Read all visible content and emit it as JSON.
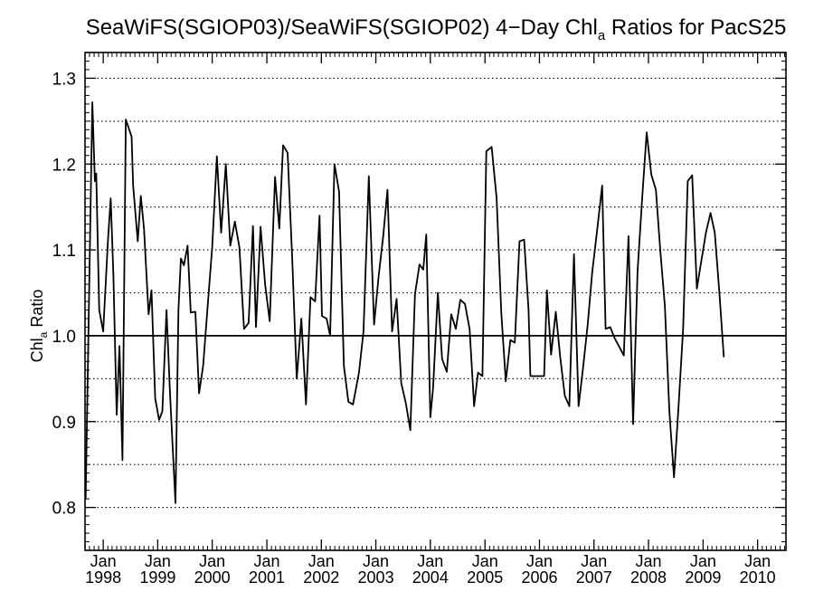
{
  "chart_data": {
    "type": "line",
    "title": "SeaWiFS(SGIOP03)/SeaWiFS(SGIOP02) 4−Day Chl",
    "title_sub": "a",
    "title_tail": " Ratios for PacS25",
    "ylabel": "Chl",
    "ylabel_sub": "a",
    "ylabel_tail": " Ratio",
    "ylim": [
      0.75,
      1.33
    ],
    "xlim": [
      "1997-09-01",
      "2010-07-10"
    ],
    "y_ticks": [
      "0.8",
      "0.9",
      "1.0",
      "1.1",
      "1.2",
      "1.3"
    ],
    "y_gridlines": [
      0.75,
      0.8,
      0.85,
      0.9,
      0.95,
      1.05,
      1.1,
      1.15,
      1.2,
      1.25,
      1.3
    ],
    "reference_line": 1.0,
    "grid": true,
    "x_ticks": [
      {
        "month": "Jan",
        "year": "1998",
        "date": "1998-01-01"
      },
      {
        "month": "Jan",
        "year": "1999",
        "date": "1999-01-01"
      },
      {
        "month": "Jan",
        "year": "2000",
        "date": "2000-01-01"
      },
      {
        "month": "Jan",
        "year": "2001",
        "date": "2001-01-01"
      },
      {
        "month": "Jan",
        "year": "2002",
        "date": "2002-01-01"
      },
      {
        "month": "Jan",
        "year": "2003",
        "date": "2003-01-01"
      },
      {
        "month": "Jan",
        "year": "2004",
        "date": "2004-01-01"
      },
      {
        "month": "Jan",
        "year": "2005",
        "date": "2005-01-01"
      },
      {
        "month": "Jan",
        "year": "2006",
        "date": "2006-01-01"
      },
      {
        "month": "Jan",
        "year": "2007",
        "date": "2007-01-01"
      },
      {
        "month": "Jan",
        "year": "2008",
        "date": "2008-01-01"
      },
      {
        "month": "Jan",
        "year": "2009",
        "date": "2009-01-01"
      },
      {
        "month": "Jan",
        "year": "2010",
        "date": "2010-01-01"
      }
    ],
    "series": [
      {
        "color": "#000000",
        "points": [
          [
            "1997-09-05",
            0.81
          ],
          [
            "1997-10-20",
            1.272
          ],
          [
            "1997-11-06",
            1.18
          ],
          [
            "1997-11-15",
            1.189
          ],
          [
            "1997-12-05",
            1.03
          ],
          [
            "1998-01-01",
            1.005
          ],
          [
            "1998-02-01",
            1.11
          ],
          [
            "1998-02-20",
            1.16
          ],
          [
            "1998-03-10",
            1.07
          ],
          [
            "1998-04-01",
            0.908
          ],
          [
            "1998-04-20",
            0.988
          ],
          [
            "1998-05-10",
            0.855
          ],
          [
            "1998-06-01",
            1.252
          ],
          [
            "1998-07-10",
            1.232
          ],
          [
            "1998-07-20",
            1.175
          ],
          [
            "1998-08-20",
            1.11
          ],
          [
            "1998-09-10",
            1.163
          ],
          [
            "1998-10-01",
            1.125
          ],
          [
            "1998-11-01",
            1.025
          ],
          [
            "1998-11-20",
            1.053
          ],
          [
            "1998-12-15",
            0.927
          ],
          [
            "1999-01-10",
            0.902
          ],
          [
            "1999-02-01",
            0.912
          ],
          [
            "1999-03-01",
            1.03
          ],
          [
            "1999-03-25",
            0.93
          ],
          [
            "1999-04-30",
            0.805
          ],
          [
            "1999-05-20",
            1.03
          ],
          [
            "1999-06-05",
            1.09
          ],
          [
            "1999-06-25",
            1.082
          ],
          [
            "1999-07-20",
            1.105
          ],
          [
            "1999-08-10",
            1.027
          ],
          [
            "1999-09-10",
            1.028
          ],
          [
            "1999-10-05",
            0.933
          ],
          [
            "1999-11-01",
            0.965
          ],
          [
            "1999-12-01",
            1.033
          ],
          [
            "2000-01-01",
            1.103
          ],
          [
            "2000-02-01",
            1.209
          ],
          [
            "2000-03-01",
            1.12
          ],
          [
            "2000-04-01",
            1.2
          ],
          [
            "2000-05-01",
            1.105
          ],
          [
            "2000-06-01",
            1.133
          ],
          [
            "2000-07-01",
            1.103
          ],
          [
            "2000-08-01",
            1.008
          ],
          [
            "2000-09-01",
            1.015
          ],
          [
            "2000-09-30",
            1.128
          ],
          [
            "2000-10-20",
            1.01
          ],
          [
            "2000-11-20",
            1.127
          ],
          [
            "2000-12-20",
            1.06
          ],
          [
            "2001-01-20",
            1.017
          ],
          [
            "2001-02-25",
            1.185
          ],
          [
            "2001-03-25",
            1.125
          ],
          [
            "2001-04-20",
            1.222
          ],
          [
            "2001-05-20",
            1.213
          ],
          [
            "2001-06-20",
            1.09
          ],
          [
            "2001-07-20",
            0.95
          ],
          [
            "2001-08-20",
            1.02
          ],
          [
            "2001-09-20",
            0.92
          ],
          [
            "2001-10-20",
            1.045
          ],
          [
            "2001-11-20",
            1.04
          ],
          [
            "2001-12-20",
            1.14
          ],
          [
            "2002-01-05",
            1.023
          ],
          [
            "2002-02-05",
            1.02
          ],
          [
            "2002-03-01",
            1.0
          ],
          [
            "2002-03-30",
            1.2
          ],
          [
            "2002-04-30",
            1.168
          ],
          [
            "2002-06-01",
            0.965
          ],
          [
            "2002-07-01",
            0.923
          ],
          [
            "2002-08-01",
            0.92
          ],
          [
            "2002-09-10",
            0.957
          ],
          [
            "2002-10-10",
            1.005
          ],
          [
            "2002-11-15",
            1.186
          ],
          [
            "2002-12-20",
            1.013
          ],
          [
            "2003-01-20",
            1.07
          ],
          [
            "2003-02-20",
            1.117
          ],
          [
            "2003-03-20",
            1.17
          ],
          [
            "2003-04-20",
            1.005
          ],
          [
            "2003-05-20",
            1.043
          ],
          [
            "2003-06-20",
            0.945
          ],
          [
            "2003-07-20",
            0.922
          ],
          [
            "2003-08-20",
            0.89
          ],
          [
            "2003-09-20",
            1.048
          ],
          [
            "2003-10-20",
            1.083
          ],
          [
            "2003-11-15",
            1.077
          ],
          [
            "2003-12-05",
            1.118
          ],
          [
            "2004-01-01",
            0.905
          ],
          [
            "2004-01-20",
            0.94
          ],
          [
            "2004-02-20",
            1.05
          ],
          [
            "2004-03-20",
            0.973
          ],
          [
            "2004-04-20",
            0.958
          ],
          [
            "2004-05-20",
            1.025
          ],
          [
            "2004-06-20",
            1.008
          ],
          [
            "2004-07-20",
            1.042
          ],
          [
            "2004-08-20",
            1.037
          ],
          [
            "2004-09-20",
            1.008
          ],
          [
            "2004-10-20",
            0.918
          ],
          [
            "2004-11-15",
            0.957
          ],
          [
            "2004-12-15",
            0.953
          ],
          [
            "2005-01-10",
            1.215
          ],
          [
            "2005-02-15",
            1.22
          ],
          [
            "2005-03-20",
            1.16
          ],
          [
            "2005-04-20",
            1.028
          ],
          [
            "2005-05-20",
            0.947
          ],
          [
            "2005-06-20",
            0.995
          ],
          [
            "2005-07-20",
            0.992
          ],
          [
            "2005-08-20",
            1.11
          ],
          [
            "2005-09-20",
            1.112
          ],
          [
            "2005-10-20",
            1.03
          ],
          [
            "2005-11-01",
            0.953
          ],
          [
            "2005-12-01",
            0.953
          ],
          [
            "2006-01-01",
            0.953
          ],
          [
            "2006-02-01",
            0.953
          ],
          [
            "2006-02-20",
            1.053
          ],
          [
            "2006-03-20",
            0.978
          ],
          [
            "2006-04-20",
            1.028
          ],
          [
            "2006-05-20",
            0.975
          ],
          [
            "2006-06-20",
            0.93
          ],
          [
            "2006-07-20",
            0.918
          ],
          [
            "2006-08-20",
            1.095
          ],
          [
            "2006-09-20",
            0.918
          ],
          [
            "2006-10-20",
            0.963
          ],
          [
            "2006-11-20",
            1.013
          ],
          [
            "2006-12-20",
            1.073
          ],
          [
            "2007-01-20",
            1.12
          ],
          [
            "2007-02-25",
            1.175
          ],
          [
            "2007-03-20",
            1.008
          ],
          [
            "2007-04-20",
            1.01
          ],
          [
            "2007-05-20",
            0.997
          ],
          [
            "2007-06-20",
            0.987
          ],
          [
            "2007-07-20",
            0.977
          ],
          [
            "2007-08-20",
            1.116
          ],
          [
            "2007-09-20",
            0.897
          ],
          [
            "2007-10-20",
            1.075
          ],
          [
            "2007-11-20",
            1.16
          ],
          [
            "2007-12-20",
            1.237
          ],
          [
            "2008-01-20",
            1.188
          ],
          [
            "2008-02-20",
            1.17
          ],
          [
            "2008-03-20",
            1.1
          ],
          [
            "2008-04-20",
            1.035
          ],
          [
            "2008-05-20",
            0.912
          ],
          [
            "2008-06-20",
            0.835
          ],
          [
            "2008-07-20",
            0.917
          ],
          [
            "2008-08-20",
            1.008
          ],
          [
            "2008-09-20",
            1.18
          ],
          [
            "2008-10-20",
            1.187
          ],
          [
            "2008-11-20",
            1.055
          ],
          [
            "2008-12-20",
            1.087
          ],
          [
            "2009-01-20",
            1.12
          ],
          [
            "2009-02-20",
            1.143
          ],
          [
            "2009-03-20",
            1.12
          ],
          [
            "2009-04-20",
            1.05
          ],
          [
            "2009-05-20",
            0.975
          ]
        ]
      }
    ]
  }
}
